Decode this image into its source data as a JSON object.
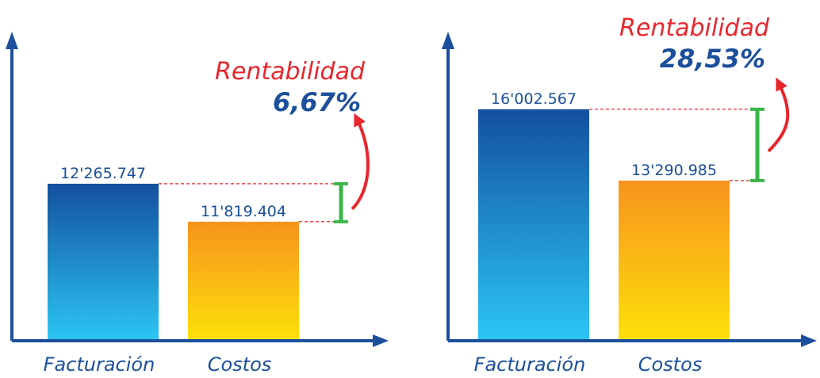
{
  "chart_data": [
    {
      "type": "bar",
      "categories": [
        "Facturación",
        "Costos"
      ],
      "values": [
        12265747,
        11819404
      ],
      "value_labels": [
        "12'265.747",
        "11'819.404"
      ],
      "colors": [
        [
          "#14509f",
          "#2bc6f3"
        ],
        [
          "#f7931d",
          "#fde10a"
        ]
      ],
      "ylim": [
        10420000,
        13960000
      ],
      "annotation": {
        "title": "Rentabilidad",
        "value": "6,67%"
      }
    },
    {
      "type": "bar",
      "categories": [
        "Facturación",
        "Costos"
      ],
      "values": [
        16002567,
        13290985
      ],
      "value_labels": [
        "16'002.567",
        "13'290.985"
      ],
      "colors": [
        [
          "#14509f",
          "#2bc6f3"
        ],
        [
          "#f7931d",
          "#fde10a"
        ]
      ],
      "ylim": [
        7200000,
        18650000
      ],
      "annotation": {
        "title": "Rentabilidad",
        "value": "28,53%"
      }
    }
  ]
}
